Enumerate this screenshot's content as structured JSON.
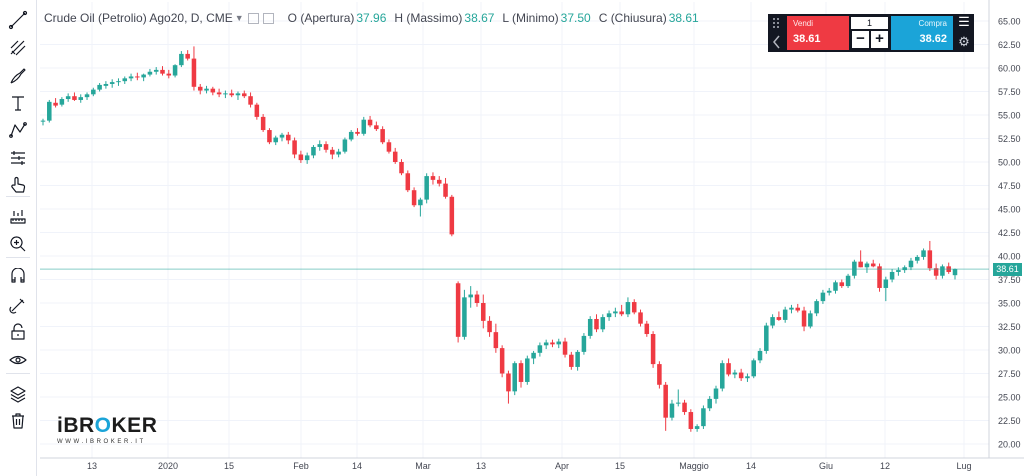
{
  "toolbar": {
    "items": [
      {
        "name": "crosshair-trend-line-icon"
      },
      {
        "name": "fib-retracement-icon"
      },
      {
        "name": "brush-icon"
      },
      {
        "name": "text-icon"
      },
      {
        "name": "pattern-icon"
      },
      {
        "name": "prediction-icon"
      },
      {
        "name": "hand-pointer-icon"
      },
      {
        "name": "ruler-icon"
      },
      {
        "name": "zoom-in-icon"
      },
      {
        "name": "magnet-icon"
      },
      {
        "name": "stay-in-drawing-mode-icon"
      },
      {
        "name": "lock-icon"
      },
      {
        "name": "eye-icon"
      },
      {
        "name": "layers-icon"
      },
      {
        "name": "trash-icon"
      }
    ]
  },
  "legend": {
    "symbol": "Crude Oil (Petrolio) Ago20, D, CME",
    "open_label": "O (Apertura)",
    "open_value": "37.96",
    "high_label": "H (Massimo)",
    "high_value": "38.67",
    "low_label": "L (Minimo)",
    "low_value": "37.50",
    "close_label": "C (Chiusura)",
    "close_value": "38.61"
  },
  "trade": {
    "sell_label": "Vendi",
    "sell_price": "38.61",
    "qty": "1",
    "buy_label": "Compra",
    "buy_price": "38.62"
  },
  "logo": {
    "brand_pre": "iBR",
    "brand_dot": "O",
    "brand_post": "KER",
    "url": "WWW.IBROKER.IT"
  },
  "last_price": "38.61",
  "colors": {
    "up": "#26a69a",
    "down": "#ef3a43",
    "grid": "#f0f3fa",
    "axis_text": "#434651"
  },
  "chart_data": {
    "type": "candlestick",
    "price_axis": {
      "min": 20.0,
      "max": 65.0,
      "step": 2.5,
      "labels": [
        "65.00",
        "62.50",
        "60.00",
        "57.50",
        "55.00",
        "52.50",
        "50.00",
        "47.50",
        "45.00",
        "42.50",
        "40.00",
        "37.50",
        "35.00",
        "32.50",
        "30.00",
        "27.50",
        "25.00",
        "22.50",
        "20.00"
      ]
    },
    "time_axis": {
      "labels": [
        "13",
        "2020",
        "15",
        "Feb",
        "14",
        "Mar",
        "13",
        "Apr",
        "15",
        "Maggio",
        "14",
        "Giu",
        "12",
        "Lug"
      ]
    },
    "ohlc": [
      [
        54.3,
        54.6,
        53.9,
        54.4
      ],
      [
        54.4,
        56.6,
        54.2,
        56.4
      ],
      [
        56.3,
        56.8,
        55.8,
        56.0
      ],
      [
        56.1,
        56.9,
        55.9,
        56.7
      ],
      [
        56.7,
        57.3,
        56.4,
        57.0
      ],
      [
        57.0,
        57.4,
        56.5,
        56.6
      ],
      [
        56.6,
        57.2,
        56.3,
        56.9
      ],
      [
        56.9,
        57.4,
        56.6,
        57.2
      ],
      [
        57.2,
        57.9,
        57.0,
        57.7
      ],
      [
        57.7,
        58.4,
        57.5,
        58.2
      ],
      [
        58.1,
        58.6,
        57.8,
        58.3
      ],
      [
        58.3,
        58.8,
        57.9,
        58.5
      ],
      [
        58.5,
        58.9,
        58.1,
        58.6
      ],
      [
        58.6,
        59.1,
        58.3,
        58.9
      ],
      [
        58.9,
        59.4,
        58.6,
        59.1
      ],
      [
        59.1,
        59.5,
        58.7,
        59.0
      ],
      [
        59.0,
        59.4,
        58.6,
        59.3
      ],
      [
        59.3,
        59.9,
        59.1,
        59.6
      ],
      [
        59.6,
        60.1,
        59.3,
        59.8
      ],
      [
        59.8,
        60.2,
        59.2,
        59.4
      ],
      [
        59.4,
        59.8,
        58.9,
        59.2
      ],
      [
        59.2,
        60.4,
        59.0,
        60.3
      ],
      [
        60.3,
        61.8,
        60.1,
        61.5
      ],
      [
        61.5,
        61.9,
        60.8,
        61.0
      ],
      [
        61.0,
        62.3,
        57.6,
        58.0
      ],
      [
        58.0,
        58.3,
        57.2,
        57.6
      ],
      [
        57.6,
        58.1,
        57.3,
        57.8
      ],
      [
        57.8,
        58.0,
        57.1,
        57.4
      ],
      [
        57.4,
        57.8,
        56.9,
        57.2
      ],
      [
        57.2,
        57.6,
        56.8,
        57.3
      ],
      [
        57.3,
        57.7,
        56.9,
        57.1
      ],
      [
        57.1,
        57.5,
        56.6,
        57.3
      ],
      [
        57.3,
        57.6,
        56.8,
        57.0
      ],
      [
        57.0,
        57.4,
        55.8,
        56.1
      ],
      [
        56.1,
        56.3,
        54.5,
        54.8
      ],
      [
        54.8,
        55.1,
        53.2,
        53.4
      ],
      [
        53.4,
        53.6,
        51.9,
        52.1
      ],
      [
        52.1,
        52.8,
        51.8,
        52.6
      ],
      [
        52.6,
        53.1,
        52.2,
        52.9
      ],
      [
        52.9,
        53.2,
        51.9,
        52.3
      ],
      [
        52.3,
        52.6,
        50.4,
        50.8
      ],
      [
        50.8,
        51.2,
        49.9,
        50.2
      ],
      [
        50.2,
        51.0,
        49.8,
        50.7
      ],
      [
        50.7,
        51.8,
        50.4,
        51.6
      ],
      [
        51.6,
        52.3,
        51.2,
        51.9
      ],
      [
        51.9,
        52.2,
        51.0,
        51.3
      ],
      [
        51.3,
        51.6,
        50.3,
        50.8
      ],
      [
        50.8,
        51.4,
        50.5,
        51.1
      ],
      [
        51.1,
        52.6,
        50.9,
        52.4
      ],
      [
        52.4,
        53.4,
        52.2,
        53.2
      ],
      [
        53.2,
        53.6,
        52.8,
        53.0
      ],
      [
        53.0,
        54.8,
        52.8,
        54.5
      ],
      [
        54.5,
        54.9,
        53.7,
        53.9
      ],
      [
        53.9,
        54.3,
        53.3,
        53.5
      ],
      [
        53.5,
        53.8,
        51.9,
        52.1
      ],
      [
        52.1,
        52.4,
        50.9,
        51.1
      ],
      [
        51.1,
        51.5,
        49.8,
        50.0
      ],
      [
        50.0,
        50.3,
        48.6,
        48.8
      ],
      [
        48.8,
        49.1,
        46.8,
        47.0
      ],
      [
        47.0,
        47.3,
        45.2,
        45.4
      ],
      [
        45.4,
        46.2,
        44.2,
        46.0
      ],
      [
        46.0,
        48.8,
        45.6,
        48.5
      ],
      [
        48.5,
        48.9,
        47.6,
        48.1
      ],
      [
        48.1,
        48.5,
        47.4,
        47.7
      ],
      [
        47.7,
        48.3,
        46.1,
        46.3
      ],
      [
        46.3,
        46.5,
        42.1,
        42.3
      ],
      [
        37.1,
        37.3,
        30.8,
        31.4
      ],
      [
        31.4,
        36.4,
        31.1,
        35.6
      ],
      [
        35.6,
        36.8,
        34.5,
        35.9
      ],
      [
        35.9,
        36.3,
        34.6,
        35.0
      ],
      [
        35.0,
        35.9,
        32.3,
        33.1
      ],
      [
        33.1,
        33.6,
        31.4,
        31.9
      ],
      [
        31.9,
        32.8,
        29.7,
        30.2
      ],
      [
        30.2,
        30.5,
        27.1,
        27.5
      ],
      [
        27.5,
        27.8,
        24.3,
        25.6
      ],
      [
        25.6,
        28.8,
        25.2,
        28.6
      ],
      [
        28.6,
        28.9,
        26.0,
        26.6
      ],
      [
        26.6,
        29.4,
        26.3,
        29.1
      ],
      [
        29.1,
        29.9,
        28.5,
        29.7
      ],
      [
        29.7,
        30.8,
        29.3,
        30.5
      ],
      [
        30.5,
        31.1,
        30.1,
        30.8
      ],
      [
        30.8,
        31.1,
        30.3,
        30.6
      ],
      [
        30.6,
        31.2,
        30.2,
        30.9
      ],
      [
        30.9,
        31.3,
        29.2,
        29.5
      ],
      [
        29.5,
        29.8,
        27.9,
        28.2
      ],
      [
        28.2,
        30.0,
        27.8,
        29.8
      ],
      [
        29.8,
        31.8,
        29.5,
        31.5
      ],
      [
        31.5,
        33.6,
        31.2,
        33.3
      ],
      [
        33.3,
        33.8,
        31.9,
        32.2
      ],
      [
        32.2,
        33.8,
        31.9,
        33.5
      ],
      [
        33.5,
        34.2,
        33.1,
        33.9
      ],
      [
        33.9,
        34.5,
        33.5,
        34.1
      ],
      [
        34.1,
        34.8,
        33.6,
        33.8
      ],
      [
        33.8,
        35.6,
        33.5,
        35.1
      ],
      [
        35.1,
        35.4,
        33.8,
        34.0
      ],
      [
        34.0,
        34.3,
        32.5,
        32.8
      ],
      [
        32.8,
        33.1,
        31.4,
        31.7
      ],
      [
        31.7,
        32.0,
        28.1,
        28.5
      ],
      [
        28.5,
        28.8,
        25.9,
        26.3
      ],
      [
        26.3,
        26.6,
        21.4,
        22.8
      ],
      [
        22.8,
        24.7,
        22.5,
        24.3
      ],
      [
        24.3,
        25.8,
        24.0,
        24.4
      ],
      [
        24.4,
        24.7,
        23.1,
        23.4
      ],
      [
        23.4,
        23.7,
        21.3,
        21.6
      ],
      [
        21.6,
        22.1,
        21.3,
        21.9
      ],
      [
        21.9,
        24.1,
        21.6,
        23.8
      ],
      [
        23.8,
        25.1,
        23.5,
        24.8
      ],
      [
        24.8,
        26.2,
        24.3,
        25.9
      ],
      [
        25.9,
        28.9,
        25.6,
        28.6
      ],
      [
        28.6,
        29.1,
        27.2,
        27.4
      ],
      [
        27.4,
        27.9,
        27.0,
        27.6
      ],
      [
        27.6,
        28.0,
        26.7,
        27.0
      ],
      [
        27.0,
        27.5,
        26.6,
        27.2
      ],
      [
        27.2,
        29.1,
        27.0,
        28.9
      ],
      [
        28.9,
        30.2,
        28.6,
        29.9
      ],
      [
        29.9,
        32.9,
        29.6,
        32.6
      ],
      [
        32.6,
        33.8,
        32.3,
        33.5
      ],
      [
        33.5,
        34.1,
        33.1,
        33.2
      ],
      [
        33.2,
        34.6,
        32.9,
        34.3
      ],
      [
        34.3,
        34.8,
        33.9,
        34.5
      ],
      [
        34.5,
        34.9,
        34.0,
        34.2
      ],
      [
        34.2,
        34.6,
        32.0,
        32.5
      ],
      [
        32.5,
        34.2,
        32.3,
        33.9
      ],
      [
        33.9,
        35.4,
        33.6,
        35.2
      ],
      [
        35.2,
        36.4,
        34.9,
        36.1
      ],
      [
        36.1,
        36.6,
        35.8,
        36.3
      ],
      [
        36.3,
        37.4,
        36.0,
        37.2
      ],
      [
        37.2,
        37.5,
        36.6,
        36.8
      ],
      [
        36.8,
        38.1,
        36.6,
        37.9
      ],
      [
        37.9,
        39.6,
        37.6,
        39.4
      ],
      [
        39.4,
        40.6,
        38.8,
        38.8
      ],
      [
        38.8,
        39.4,
        38.2,
        39.2
      ],
      [
        39.2,
        39.6,
        38.8,
        38.9
      ],
      [
        38.9,
        39.2,
        36.2,
        36.6
      ],
      [
        36.6,
        37.8,
        35.2,
        37.5
      ],
      [
        37.5,
        38.6,
        37.2,
        38.3
      ],
      [
        38.3,
        38.8,
        37.9,
        38.5
      ],
      [
        38.5,
        39.0,
        38.2,
        38.8
      ],
      [
        38.8,
        39.8,
        38.5,
        39.5
      ],
      [
        39.5,
        40.1,
        39.2,
        39.9
      ],
      [
        39.9,
        40.8,
        39.6,
        40.6
      ],
      [
        40.6,
        41.6,
        38.4,
        38.7
      ],
      [
        38.7,
        39.2,
        37.5,
        37.9
      ],
      [
        37.9,
        39.1,
        37.6,
        38.9
      ],
      [
        38.9,
        39.3,
        38.1,
        38.3
      ],
      [
        37.96,
        38.67,
        37.5,
        38.61
      ]
    ]
  }
}
